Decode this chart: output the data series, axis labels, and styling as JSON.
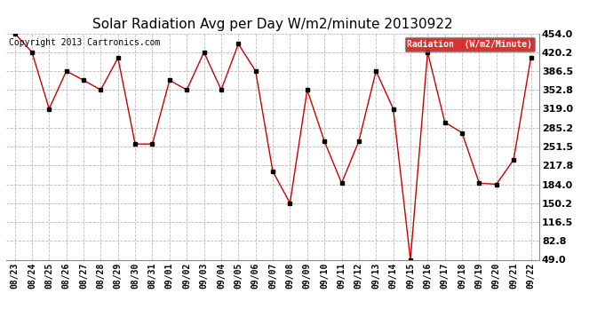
{
  "title": "Solar Radiation Avg per Day W/m2/minute 20130922",
  "copyright": "Copyright 2013 Cartronics.com",
  "legend_label": "Radiation  (W/m2/Minute)",
  "legend_bg": "#cc0000",
  "legend_fg": "#ffffff",
  "background_color": "#ffffff",
  "plot_bg": "#ffffff",
  "grid_color": "#bbbbbb",
  "line_color": "#cc0000",
  "marker_color": "#000000",
  "dates": [
    "08/23",
    "08/24",
    "08/25",
    "08/26",
    "08/27",
    "08/28",
    "08/29",
    "08/30",
    "08/31",
    "09/01",
    "09/02",
    "09/03",
    "09/04",
    "09/05",
    "09/06",
    "09/07",
    "09/08",
    "09/09",
    "09/10",
    "09/11",
    "09/12",
    "09/13",
    "09/14",
    "09/15",
    "09/16",
    "09/17",
    "09/18",
    "09/19",
    "09/20",
    "09/21",
    "09/22"
  ],
  "values": [
    454.0,
    420.2,
    319.0,
    386.5,
    370.0,
    352.8,
    410.0,
    256.0,
    256.0,
    370.0,
    352.8,
    420.2,
    352.8,
    435.0,
    386.5,
    207.0,
    150.2,
    352.8,
    261.0,
    186.0,
    261.0,
    386.5,
    319.0,
    49.0,
    420.2,
    295.0,
    276.0,
    186.0,
    184.0,
    228.0,
    410.0
  ],
  "ylim_min": 49.0,
  "ylim_max": 454.0,
  "yticks": [
    49.0,
    82.8,
    116.5,
    150.2,
    184.0,
    217.8,
    251.5,
    285.2,
    319.0,
    352.8,
    386.5,
    420.2,
    454.0
  ],
  "title_fontsize": 11,
  "tick_fontsize": 7,
  "ytick_fontsize": 8,
  "copyright_fontsize": 7,
  "legend_fontsize": 7
}
